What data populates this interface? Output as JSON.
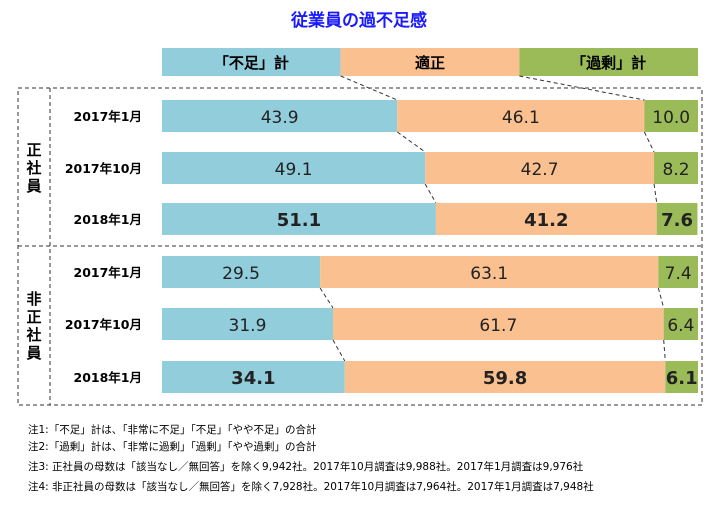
{
  "chart_data": {
    "type": "bar",
    "orientation": "horizontal",
    "stacked": "100%",
    "title": "従業員の過不足感",
    "legend": [
      "「不足」計",
      "適正",
      "「過剰」計"
    ],
    "legend_placement": "top",
    "colors": [
      "#92CDDC",
      "#FAC090",
      "#9BBB59"
    ],
    "groups": [
      {
        "label": "正社員",
        "rows": [
          {
            "category": "2017年1月",
            "values": [
              43.9,
              46.1,
              10.0
            ],
            "labels": [
              "43.9",
              "46.1",
              "10.0"
            ],
            "bold": false
          },
          {
            "category": "2017年10月",
            "values": [
              49.1,
              42.7,
              8.2
            ],
            "labels": [
              "49.1",
              "42.7",
              "8.2"
            ],
            "bold": false
          },
          {
            "category": "2018年1月",
            "values": [
              51.1,
              41.2,
              7.6
            ],
            "labels": [
              "51.1",
              "41.2",
              "7.6"
            ],
            "bold": true
          }
        ]
      },
      {
        "label": "非正社員",
        "rows": [
          {
            "category": "2017年1月",
            "values": [
              29.5,
              63.1,
              7.4
            ],
            "labels": [
              "29.5",
              "63.1",
              "7.4"
            ],
            "bold": false
          },
          {
            "category": "2017年10月",
            "values": [
              31.9,
              61.7,
              6.4
            ],
            "labels": [
              "31.9",
              "61.7",
              "6.4"
            ],
            "bold": false
          },
          {
            "category": "2018年1月",
            "values": [
              34.1,
              59.8,
              6.1
            ],
            "labels": [
              "34.1",
              "59.8",
              "6.1"
            ],
            "bold": true
          }
        ]
      }
    ]
  },
  "notes": [
    "注1:「不足」計は、「非常に不足」「不足」「やや不足」の合計",
    "注2:「過剰」計は、「非常に過剰」「過剰」「やや過剰」の合計",
    "注3: 正社員の母数は「該当なし／無回答」を除く9,942社。2017年10月調査は9,988社。2017年1月調査は9,976社",
    "注4: 非正社員の母数は「該当なし／無回答」を除く7,928社。2017年10月調査は7,964社。2017年1月調査は7,948社"
  ]
}
